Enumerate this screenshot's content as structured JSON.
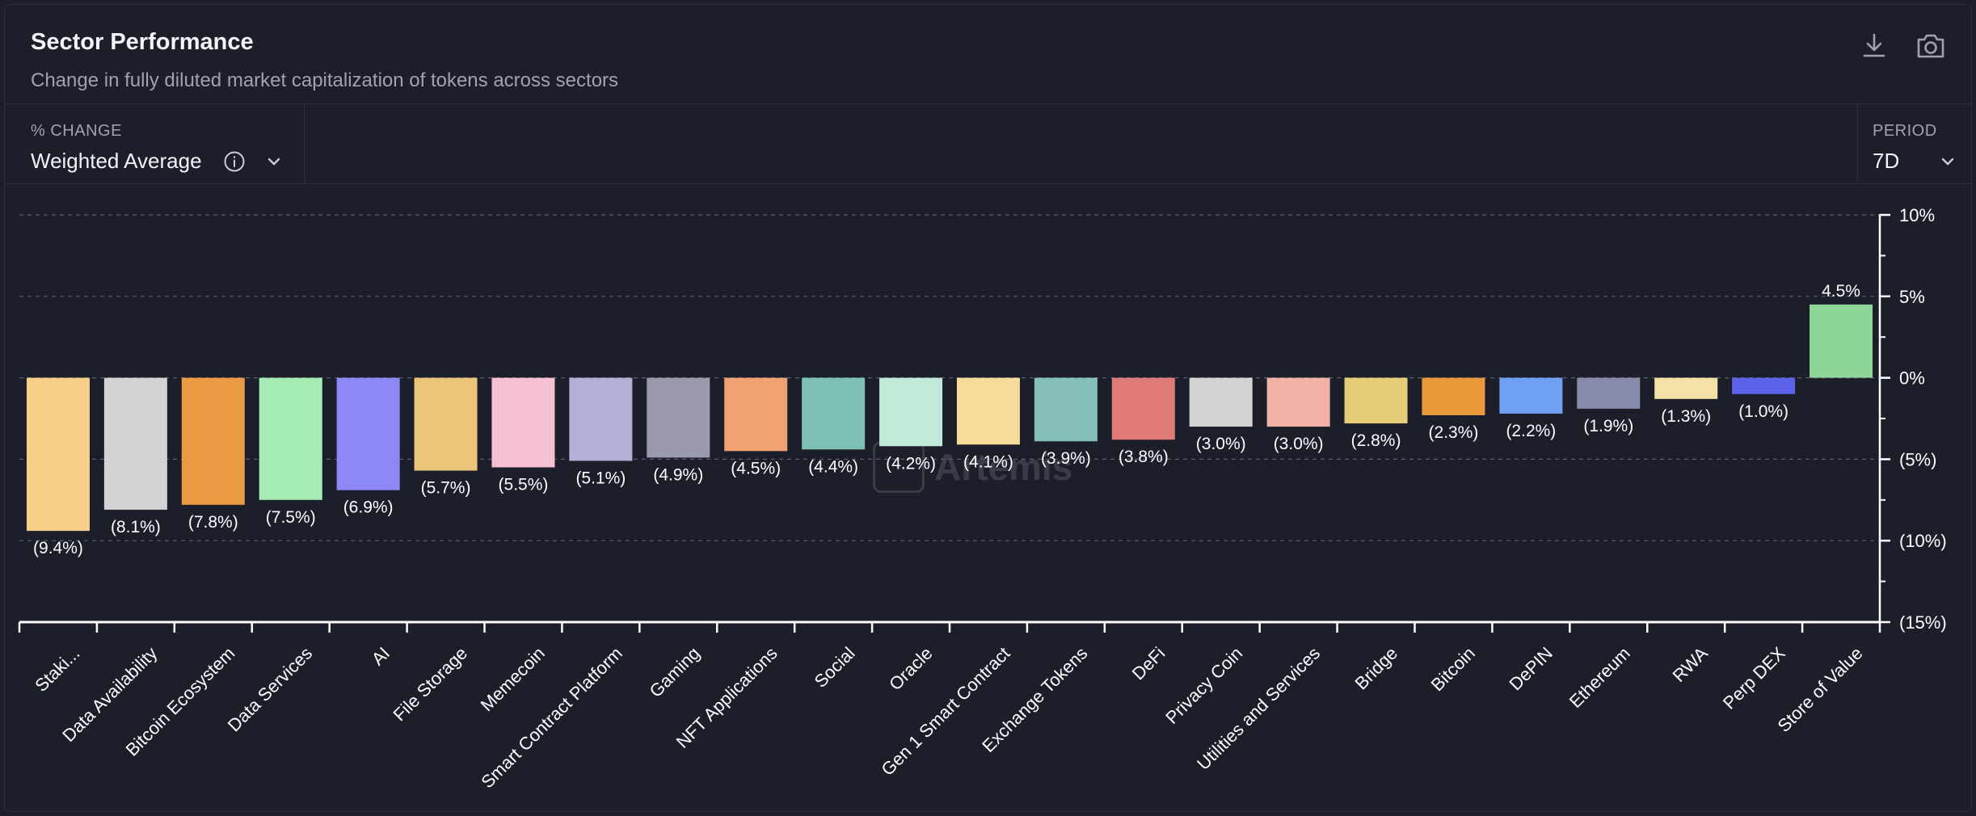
{
  "header": {
    "title": "Sector Performance",
    "subtitle": "Change in fully diluted market capitalization of tokens across sectors"
  },
  "icons": {
    "download": "download-icon",
    "screenshot": "camera-icon",
    "info": "info-icon",
    "chevron": "chevron-down-icon"
  },
  "controls": {
    "change_label": "% CHANGE",
    "change_value": "Weighted Average",
    "period_label": "PERIOD",
    "period_value": "7D"
  },
  "watermark": "Artemis",
  "chart_data": {
    "type": "bar",
    "title": "",
    "xlabel": "",
    "ylabel": "",
    "ylim": [
      -15,
      10
    ],
    "yticks": [
      10,
      5,
      0,
      -5,
      -10,
      -15
    ],
    "ytick_labels": [
      "10%",
      "5%",
      "0%",
      "(5%)",
      "(10%)",
      "(15%)"
    ],
    "grid": true,
    "categories": [
      "Staki...",
      "Data Availability",
      "Bitcoin Ecosystem",
      "Data Services",
      "AI",
      "File Storage",
      "Memecoin",
      "Smart Contract Platform",
      "Gaming",
      "NFT Applications",
      "Social",
      "Oracle",
      "Gen 1 Smart Contract",
      "Exchange Tokens",
      "DeFi",
      "Privacy Coin",
      "Utilities and Services",
      "Bridge",
      "Bitcoin",
      "DePIN",
      "Ethereum",
      "RWA",
      "Perp DEX",
      "Store of Value"
    ],
    "values": [
      -9.4,
      -8.1,
      -7.8,
      -7.5,
      -6.9,
      -5.7,
      -5.5,
      -5.1,
      -4.9,
      -4.5,
      -4.4,
      -4.2,
      -4.1,
      -3.9,
      -3.8,
      -3.0,
      -3.0,
      -2.8,
      -2.3,
      -2.2,
      -1.9,
      -1.3,
      -1.0,
      4.5
    ],
    "value_labels": [
      "(9.4%)",
      "(8.1%)",
      "(7.8%)",
      "(7.5%)",
      "(6.9%)",
      "(5.7%)",
      "(5.5%)",
      "(5.1%)",
      "(4.9%)",
      "(4.5%)",
      "(4.4%)",
      "(4.2%)",
      "(4.1%)",
      "(3.9%)",
      "(3.8%)",
      "(3.0%)",
      "(3.0%)",
      "(2.8%)",
      "(2.3%)",
      "(2.2%)",
      "(1.9%)",
      "(1.3%)",
      "(1.0%)",
      "4.5%"
    ],
    "colors": [
      "#f7cf88",
      "#d3d3d3",
      "#ea9a40",
      "#a6ebb4",
      "#8e87f6",
      "#eac478",
      "#f5c0d0",
      "#b1b1d8",
      "#9a9aac",
      "#f1a272",
      "#7ec1b2",
      "#c2e9d8",
      "#f6dc9a",
      "#84bfb8",
      "#e07a77",
      "#d3d3d3",
      "#f3b2a7",
      "#e8cd78",
      "#e99b3c",
      "#70a0f4",
      "#878ba9",
      "#f5e0a6",
      "#5b63ea",
      "#8ed698"
    ]
  }
}
